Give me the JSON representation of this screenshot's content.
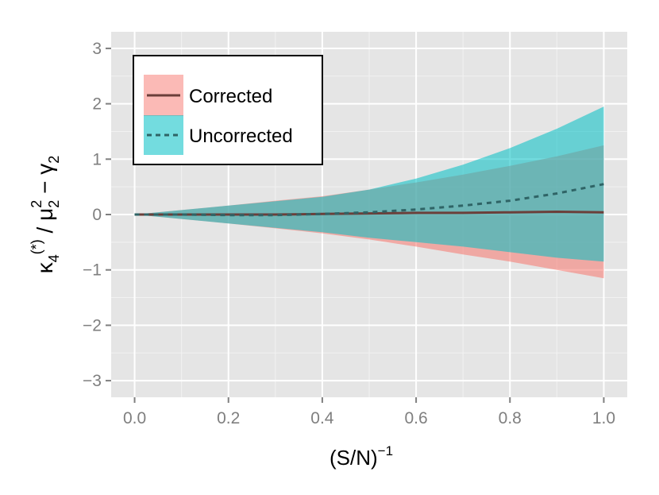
{
  "chart_data": {
    "type": "area",
    "xlabel": "(S/N)",
    "xlabel_superscript": "−1",
    "ylabel": {
      "k_symbol": "κ",
      "k_sub": "4",
      "k_sup": "(*)",
      "slash": " / ",
      "mu_symbol": "μ",
      "mu_sub": "2",
      "mu_sup": "2",
      "minus": " − ",
      "gamma_symbol": "γ",
      "gamma_sub": "2"
    },
    "xlim": [
      -0.05,
      1.05
    ],
    "ylim": [
      -3.3,
      3.3
    ],
    "x_ticks": [
      0.0,
      0.2,
      0.4,
      0.6,
      0.8,
      1.0
    ],
    "x_tick_labels": [
      "0.0",
      "0.2",
      "0.4",
      "0.6",
      "0.8",
      "1.0"
    ],
    "y_ticks": [
      -3,
      -2,
      -1,
      0,
      1,
      2,
      3
    ],
    "y_tick_labels": [
      "−3",
      "−2",
      "−1",
      "0",
      "1",
      "2",
      "3"
    ],
    "grid": true,
    "legend_position": "top-left",
    "series": [
      {
        "name": "Corrected",
        "line_style": "solid",
        "fill_color": "#F8766D",
        "line_color": "#6b3f3a",
        "x": [
          0.0,
          0.1,
          0.2,
          0.3,
          0.4,
          0.5,
          0.6,
          0.7,
          0.8,
          0.9,
          1.0
        ],
        "mean": [
          0.0,
          0.0,
          0.0,
          0.0,
          0.01,
          0.02,
          0.03,
          0.03,
          0.04,
          0.05,
          0.04
        ],
        "upper": [
          0.0,
          0.08,
          0.16,
          0.25,
          0.33,
          0.45,
          0.58,
          0.72,
          0.88,
          1.05,
          1.25
        ],
        "lower": [
          0.0,
          -0.08,
          -0.16,
          -0.25,
          -0.34,
          -0.45,
          -0.58,
          -0.72,
          -0.85,
          -1.0,
          -1.15
        ]
      },
      {
        "name": "Uncorrected",
        "line_style": "dashed",
        "fill_color": "#00BFC4",
        "line_color": "#2f6466",
        "x": [
          0.0,
          0.1,
          0.2,
          0.3,
          0.4,
          0.5,
          0.6,
          0.7,
          0.8,
          0.9,
          1.0
        ],
        "mean": [
          0.0,
          0.0,
          -0.01,
          -0.01,
          0.01,
          0.04,
          0.09,
          0.16,
          0.25,
          0.38,
          0.55
        ],
        "upper": [
          0.0,
          0.08,
          0.16,
          0.24,
          0.32,
          0.45,
          0.65,
          0.9,
          1.2,
          1.55,
          1.95
        ],
        "lower": [
          0.0,
          -0.08,
          -0.16,
          -0.24,
          -0.32,
          -0.42,
          -0.5,
          -0.58,
          -0.68,
          -0.78,
          -0.85
        ]
      }
    ]
  }
}
